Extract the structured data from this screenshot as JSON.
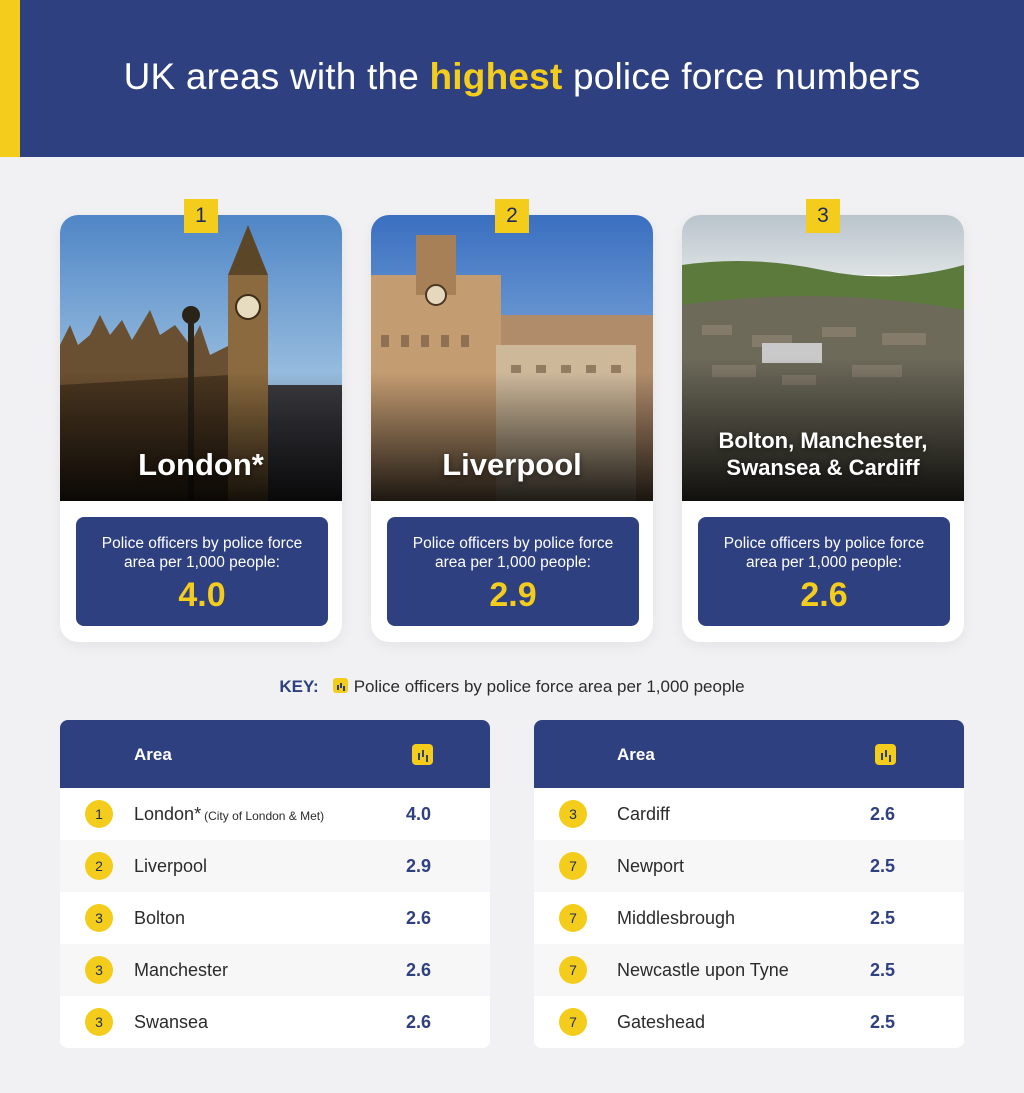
{
  "header": {
    "title_before": "UK areas with the ",
    "title_highlight": "highest",
    "title_after": " police force numbers"
  },
  "cards": [
    {
      "rank": "1",
      "name": "London*",
      "stat_label": "Police officers by police force area per 1,000 people:",
      "value": "4.0"
    },
    {
      "rank": "2",
      "name": "Liverpool",
      "stat_label": "Police officers by police force area per 1,000 people:",
      "value": "2.9"
    },
    {
      "rank": "3",
      "name_line1": "Bolton, Manchester,",
      "name_line2": "Swansea & Cardiff",
      "stat_label": "Police officers by police force area per 1,000 people:",
      "value": "2.6"
    }
  ],
  "key": {
    "label": "KEY:",
    "text": "Police officers by police force area per 1,000 people",
    "icon": "bar-chart-icon"
  },
  "tables": [
    {
      "header_area": "Area",
      "header_icon": "bar-chart-icon",
      "rows": [
        {
          "rank": "1",
          "name": "London*",
          "note": "(City of London & Met)",
          "value": "4.0"
        },
        {
          "rank": "2",
          "name": "Liverpool",
          "value": "2.9"
        },
        {
          "rank": "3",
          "name": "Bolton",
          "value": "2.6"
        },
        {
          "rank": "3",
          "name": "Manchester",
          "value": "2.6"
        },
        {
          "rank": "3",
          "name": "Swansea",
          "value": "2.6"
        }
      ]
    },
    {
      "header_area": "Area",
      "header_icon": "bar-chart-icon",
      "rows": [
        {
          "rank": "3",
          "name": "Cardiff",
          "value": "2.6"
        },
        {
          "rank": "7",
          "name": "Newport",
          "value": "2.5"
        },
        {
          "rank": "7",
          "name": "Middlesbrough",
          "value": "2.5"
        },
        {
          "rank": "7",
          "name": "Newcastle upon Tyne",
          "value": "2.5"
        },
        {
          "rank": "7",
          "name": "Gateshead",
          "value": "2.5"
        }
      ]
    }
  ],
  "colors": {
    "navy": "#2e4080",
    "yellow": "#f4cd1c",
    "background": "#f1f1f3"
  }
}
